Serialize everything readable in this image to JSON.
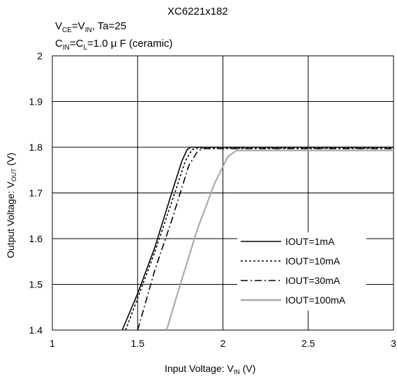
{
  "chart_data": {
    "type": "line",
    "title": "XC6221x182",
    "conditions": {
      "line1": {
        "a": "V",
        "a_sub": "CE",
        "b": "=V",
        "b_sub": "IN",
        "c": ", Ta=25"
      },
      "line2": {
        "a": "C",
        "a_sub": "IN",
        "b": "=C",
        "b_sub": "L",
        "c": "=1.0 μ F (ceramic)"
      }
    },
    "xlabel": {
      "main": "Input Voltage: V",
      "sub": "IN",
      "tail": " (V)"
    },
    "ylabel": {
      "main": "Output Voltage: V",
      "sub": "OUT",
      "tail": " (V)"
    },
    "xlim": [
      1,
      3
    ],
    "ylim": [
      1.4,
      2.0
    ],
    "xticks": [
      "1",
      "1.5",
      "2",
      "2.5",
      "3"
    ],
    "yticks": [
      "1.4",
      "1.5",
      "1.6",
      "1.7",
      "1.8",
      "1.9",
      "2"
    ],
    "grid": true,
    "legend_position": "bottom-right",
    "series": [
      {
        "name": "IOUT=1mA",
        "color": "#000000",
        "dash": "solid",
        "x": [
          1.41,
          1.5,
          1.6,
          1.7,
          1.76,
          1.79,
          1.81,
          1.85,
          3.0
        ],
        "y": [
          1.4,
          1.48,
          1.58,
          1.7,
          1.77,
          1.795,
          1.8,
          1.8,
          1.8
        ]
      },
      {
        "name": "IOUT=10mA",
        "color": "#000000",
        "dash": "dot",
        "x": [
          1.43,
          1.5,
          1.6,
          1.7,
          1.78,
          1.82,
          1.85,
          3.0
        ],
        "y": [
          1.4,
          1.47,
          1.57,
          1.68,
          1.77,
          1.795,
          1.798,
          1.798
        ]
      },
      {
        "name": "IOUT=30mA",
        "color": "#000000",
        "dash": "dashdot",
        "x": [
          1.5,
          1.6,
          1.7,
          1.8,
          1.85,
          1.88,
          3.0
        ],
        "y": [
          1.4,
          1.53,
          1.64,
          1.76,
          1.79,
          1.797,
          1.797
        ]
      },
      {
        "name": "IOUT=100mA",
        "color": "#aaaaaa",
        "dash": "solid",
        "x": [
          1.67,
          1.75,
          1.85,
          1.95,
          2.03,
          2.08,
          3.0
        ],
        "y": [
          1.4,
          1.5,
          1.62,
          1.72,
          1.78,
          1.793,
          1.793
        ]
      }
    ]
  }
}
